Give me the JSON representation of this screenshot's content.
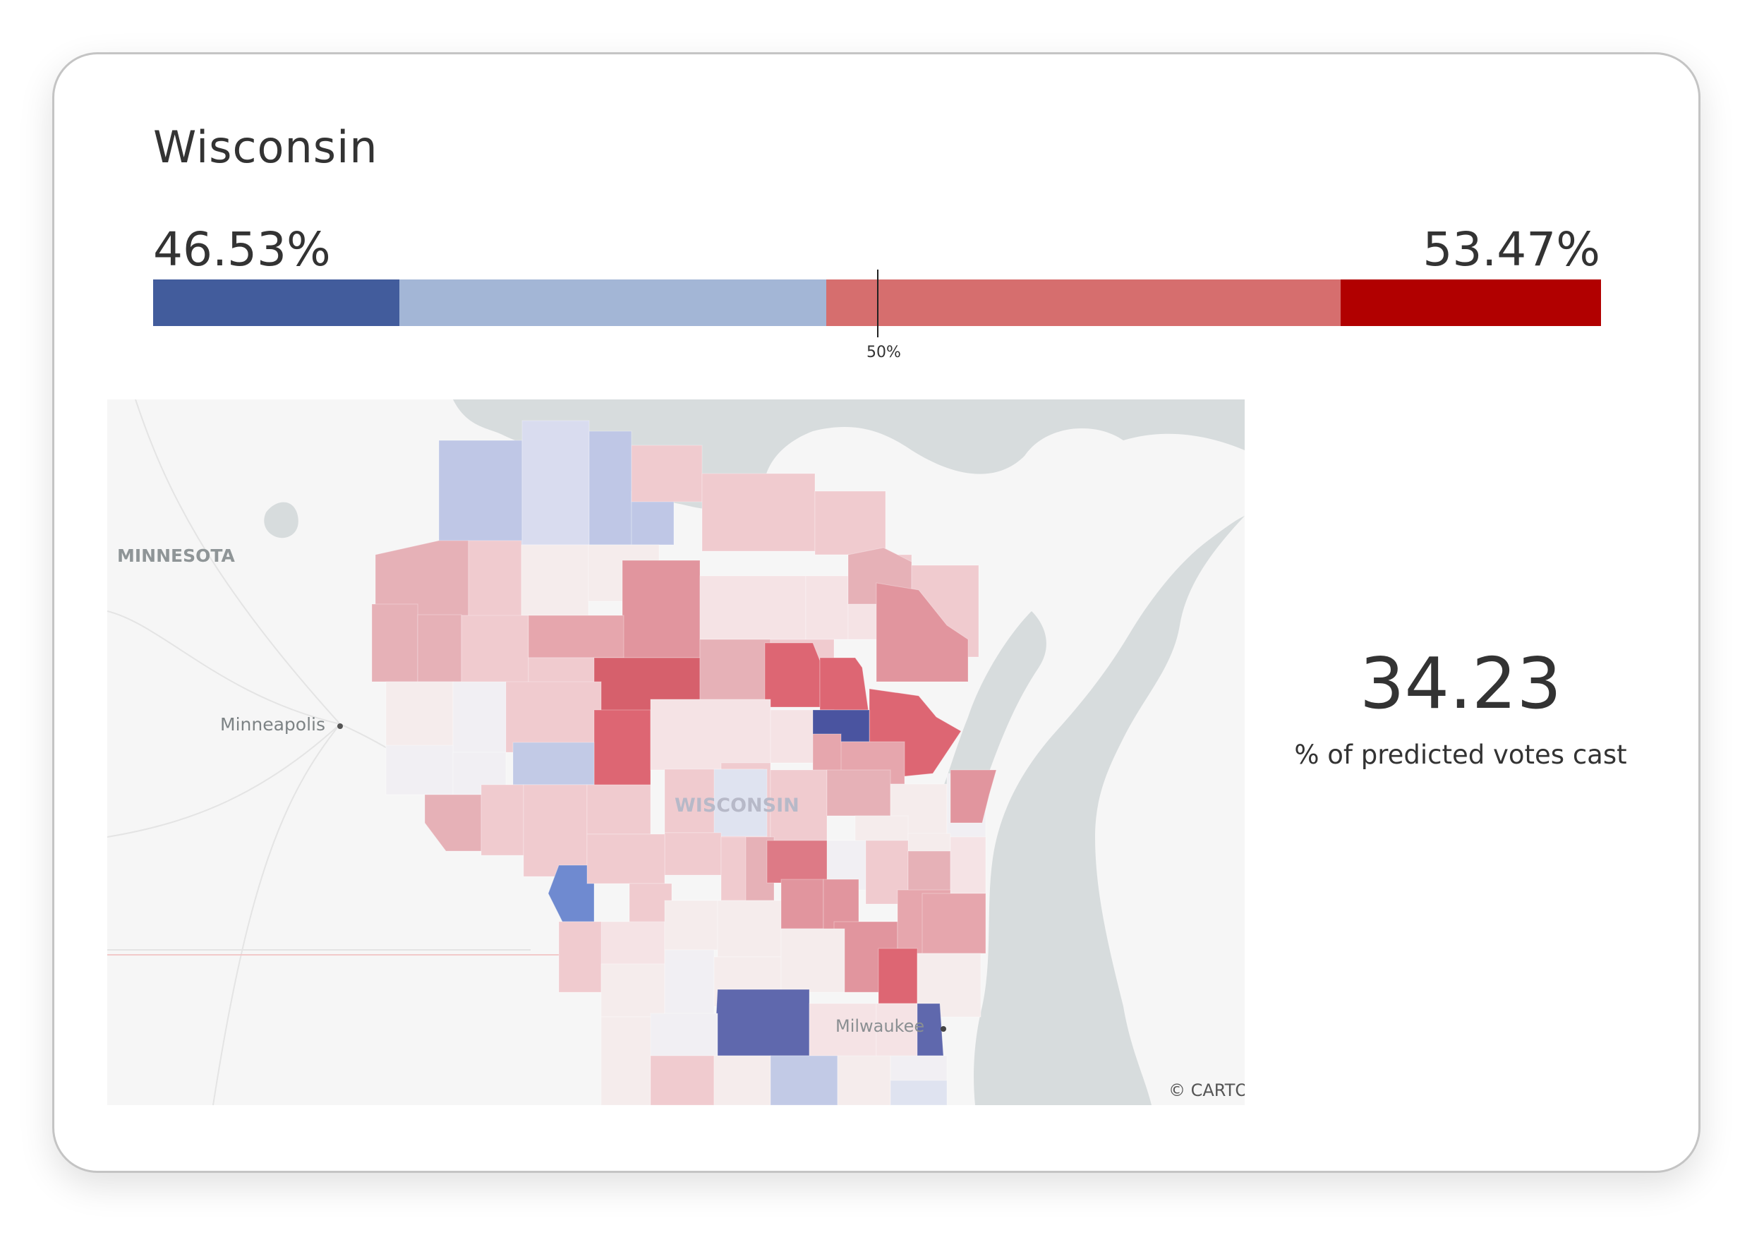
{
  "title": "Wisconsin",
  "left_percent": "46.53%",
  "right_percent": "53.47%",
  "fifty_label": "50%",
  "vote_bar": {
    "segments": [
      {
        "share": 17,
        "color": "#425c9c"
      },
      {
        "share": 29.5,
        "color": "#a3b6d6"
      },
      {
        "share": 35.5,
        "color": "#d66e6e"
      },
      {
        "share": 18,
        "color": "#b10000"
      }
    ],
    "midpoint_percent": 50
  },
  "map": {
    "labels": {
      "minnesota": "MINNESOTA",
      "minneapolis": "Minneapolis",
      "state": "WISCONSIN",
      "milwaukee": "Milwaukee",
      "attribution": "© CARTO"
    },
    "colors": {
      "water": "#d7dcdd",
      "land": "#f5f5f5",
      "strong_dem": "#4a54a0",
      "dem": "#6f8ad0",
      "lean_dem": "#c2cae6",
      "tossup": "#f1eff3",
      "lean_rep": "#f0cbcf",
      "rep": "#e19ba2",
      "strong_rep": "#d6606c"
    }
  },
  "predicted_votes_value": "34.23",
  "predicted_votes_caption": "% of predicted votes cast"
}
